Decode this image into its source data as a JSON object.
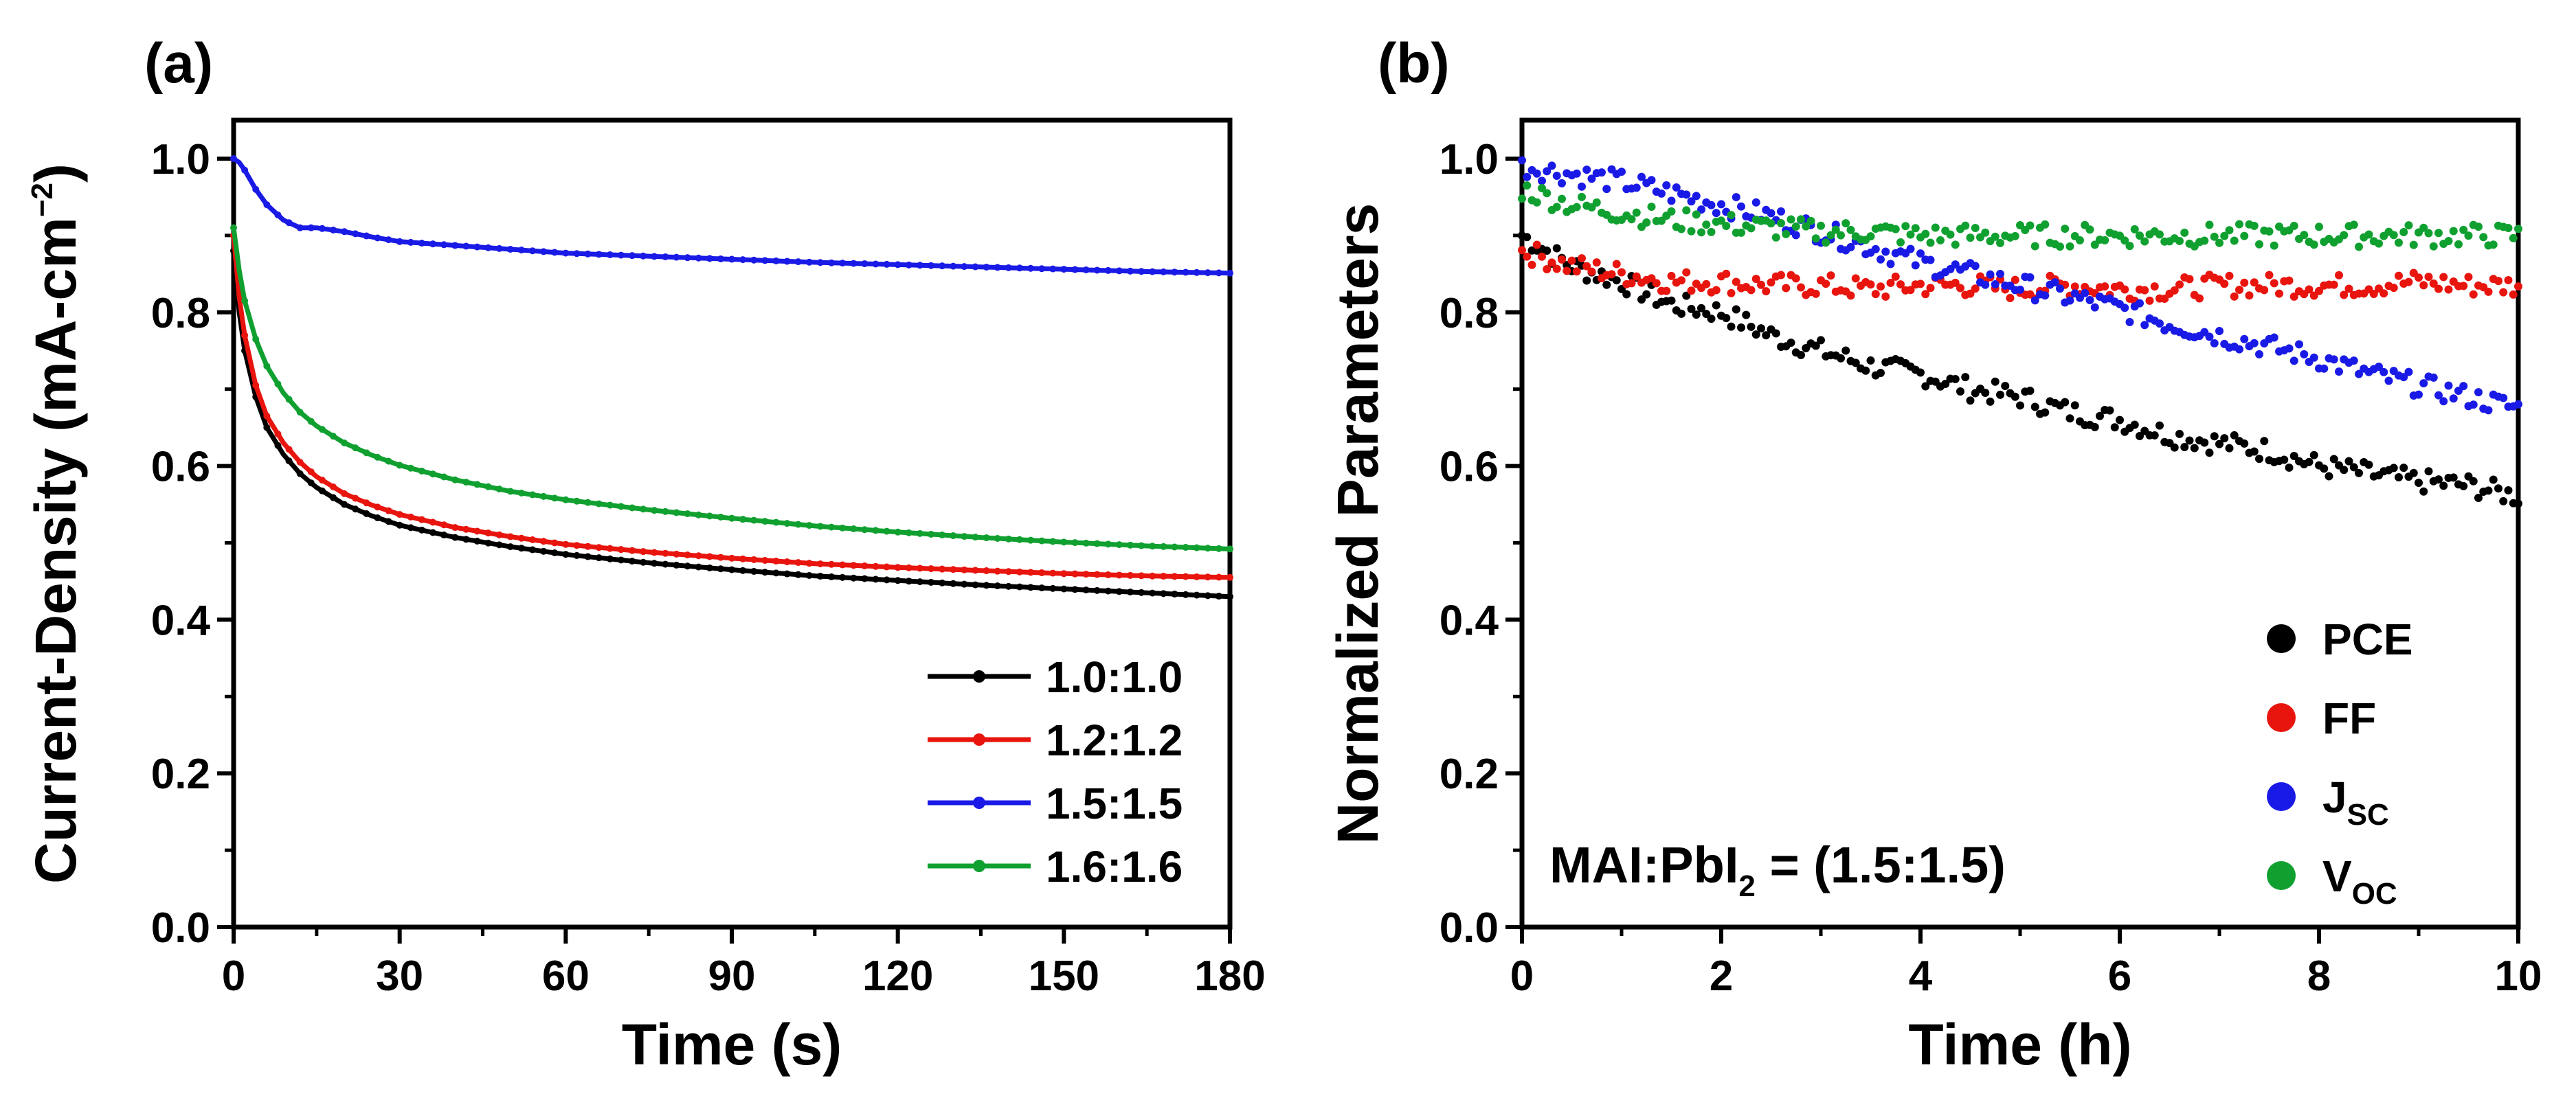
{
  "chart_data": [
    {
      "type": "line",
      "panel_label": "(a)",
      "title": "",
      "xlabel": "Time (s)",
      "ylabel": "Current-Density (mA-cm",
      "ylabel_sup": "−2",
      "ylabel_close": ")",
      "xlim": [
        0,
        180
      ],
      "ylim": [
        0,
        1.05
      ],
      "xticks": [
        "0",
        "30",
        "60",
        "90",
        "120",
        "150",
        "180"
      ],
      "yticks": [
        "0.0",
        "0.2",
        "0.4",
        "0.6",
        "0.8",
        "1.0"
      ],
      "legend_position": "bottom-right",
      "x": [
        0,
        1,
        2,
        4,
        6,
        9,
        12,
        15,
        20,
        25,
        30,
        40,
        50,
        60,
        75,
        90,
        105,
        120,
        135,
        150,
        165,
        180
      ],
      "series": [
        {
          "name": "1.0:1.0",
          "color": "#000000",
          "values": [
            0.88,
            0.8,
            0.75,
            0.69,
            0.65,
            0.615,
            0.59,
            0.572,
            0.55,
            0.535,
            0.523,
            0.507,
            0.495,
            0.485,
            0.474,
            0.465,
            0.457,
            0.451,
            0.445,
            0.44,
            0.435,
            0.43
          ]
        },
        {
          "name": "1.2:1.2",
          "color": "#e8140e",
          "values": [
            0.9,
            0.82,
            0.77,
            0.705,
            0.665,
            0.63,
            0.605,
            0.586,
            0.564,
            0.549,
            0.537,
            0.52,
            0.508,
            0.498,
            0.488,
            0.48,
            0.473,
            0.468,
            0.464,
            0.46,
            0.457,
            0.455
          ]
        },
        {
          "name": "1.5:1.5",
          "color": "#1a1ae6",
          "values": [
            1.0,
            0.995,
            0.985,
            0.96,
            0.94,
            0.92,
            0.91,
            0.91,
            0.905,
            0.898,
            0.892,
            0.887,
            0.882,
            0.877,
            0.873,
            0.869,
            0.865,
            0.862,
            0.859,
            0.856,
            0.853,
            0.851
          ]
        },
        {
          "name": "1.6:1.6",
          "color": "#10a030",
          "values": [
            0.91,
            0.855,
            0.815,
            0.765,
            0.73,
            0.695,
            0.67,
            0.652,
            0.63,
            0.614,
            0.601,
            0.582,
            0.567,
            0.556,
            0.543,
            0.532,
            0.522,
            0.514,
            0.507,
            0.501,
            0.496,
            0.492
          ]
        }
      ]
    },
    {
      "type": "scatter",
      "panel_label": "(b)",
      "title": "",
      "xlabel": "Time (h)",
      "ylabel": "Normalized Parameters",
      "xlim": [
        0,
        10
      ],
      "ylim": [
        0,
        1.05
      ],
      "xticks": [
        "0",
        "2",
        "4",
        "6",
        "8",
        "10"
      ],
      "yticks": [
        "0.0",
        "0.2",
        "0.4",
        "0.6",
        "0.8",
        "1.0"
      ],
      "legend_position": "bottom-right",
      "annotation": {
        "main": "MAI:PbI",
        "sub": "2",
        "rest": " = (1.5:1.5)"
      },
      "x": [
        0,
        0.5,
        1,
        1.5,
        2,
        2.5,
        3,
        3.5,
        4,
        4.5,
        5,
        5.5,
        6,
        6.5,
        7,
        7.5,
        8,
        8.5,
        9,
        9.5,
        10
      ],
      "series": [
        {
          "name": "PCE",
          "sub": "",
          "color": "#000000",
          "values": [
            0.9,
            0.86,
            0.84,
            0.81,
            0.8,
            0.77,
            0.75,
            0.73,
            0.72,
            0.7,
            0.69,
            0.67,
            0.66,
            0.64,
            0.63,
            0.62,
            0.6,
            0.59,
            0.58,
            0.575,
            0.56
          ]
        },
        {
          "name": "FF",
          "sub": "",
          "color": "#e8140e",
          "values": [
            0.88,
            0.86,
            0.85,
            0.84,
            0.84,
            0.835,
            0.835,
            0.83,
            0.835,
            0.835,
            0.83,
            0.835,
            0.83,
            0.83,
            0.835,
            0.835,
            0.835,
            0.835,
            0.84,
            0.835,
            0.835
          ]
        },
        {
          "name": "J",
          "sub": "SC",
          "color": "#1a1ae6",
          "values": [
            0.99,
            0.98,
            0.97,
            0.955,
            0.94,
            0.925,
            0.905,
            0.885,
            0.865,
            0.85,
            0.835,
            0.82,
            0.805,
            0.785,
            0.77,
            0.755,
            0.74,
            0.72,
            0.705,
            0.69,
            0.675
          ]
        },
        {
          "name": "V",
          "sub": "OC",
          "color": "#10a030",
          "values": [
            0.96,
            0.94,
            0.93,
            0.92,
            0.915,
            0.91,
            0.905,
            0.905,
            0.9,
            0.9,
            0.9,
            0.9,
            0.9,
            0.9,
            0.9,
            0.9,
            0.9,
            0.9,
            0.9,
            0.9,
            0.9
          ]
        }
      ]
    }
  ]
}
